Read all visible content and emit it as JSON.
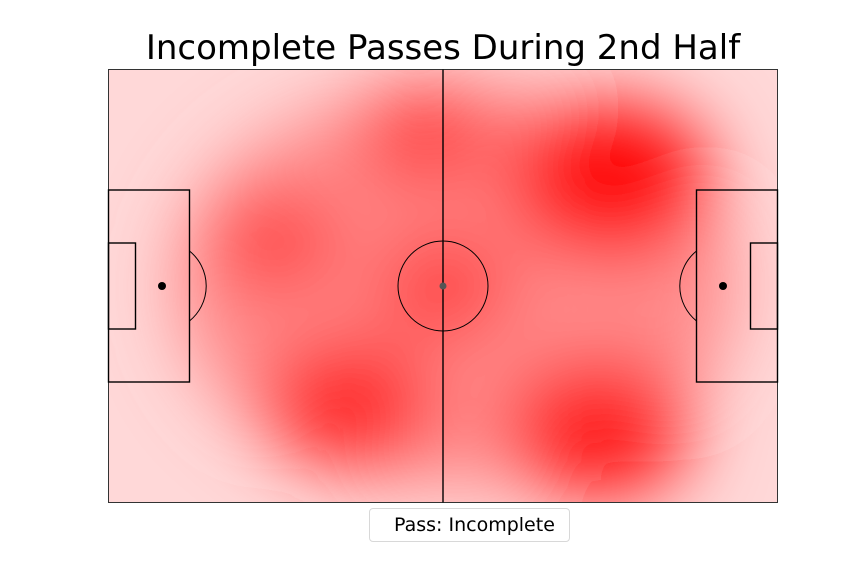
{
  "chart_data": {
    "type": "heatmap",
    "title": "Incomplete Passes During 2nd Half",
    "legend": [
      {
        "label": "Pass: Incomplete",
        "color": "#ff0000"
      }
    ],
    "field": {
      "length": 120,
      "width": 80
    },
    "hotspots": [
      {
        "name": "top-right",
        "x": 90,
        "y": 20,
        "intensity": 1.0
      },
      {
        "name": "bottom-right",
        "x": 88,
        "y": 67,
        "intensity": 0.85
      },
      {
        "name": "bottom-center-left",
        "x": 43,
        "y": 62,
        "intensity": 0.72
      },
      {
        "name": "center",
        "x": 60,
        "y": 40,
        "intensity": 0.45
      },
      {
        "name": "upper-center",
        "x": 57,
        "y": 12,
        "intensity": 0.45
      },
      {
        "name": "left-mid",
        "x": 30,
        "y": 32,
        "intensity": 0.4
      }
    ],
    "colormap": "Reds",
    "axes": "off",
    "grid": false
  }
}
